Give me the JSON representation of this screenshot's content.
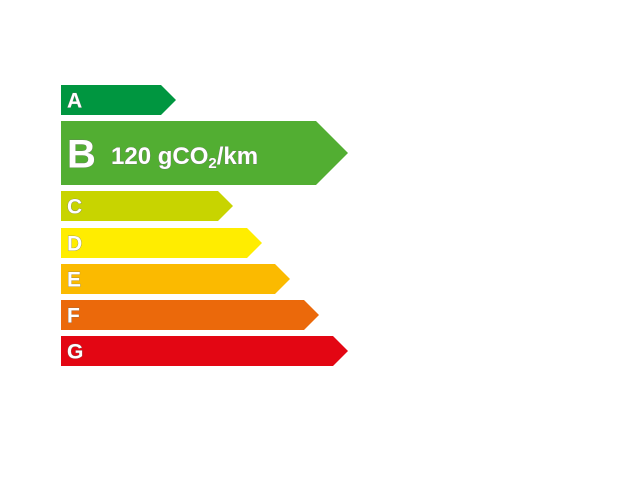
{
  "ratings": [
    {
      "letter": "A",
      "color": "#009640"
    },
    {
      "letter": "B",
      "color": "#52ae32",
      "active": true,
      "value": "120",
      "unit_prefix": "gCO",
      "unit_sub": "2",
      "unit_suffix": "/km"
    },
    {
      "letter": "C",
      "color": "#c8d400"
    },
    {
      "letter": "D",
      "color": "#ffed00"
    },
    {
      "letter": "E",
      "color": "#fbba00"
    },
    {
      "letter": "F",
      "color": "#eb690b"
    },
    {
      "letter": "G",
      "color": "#e30613"
    }
  ]
}
